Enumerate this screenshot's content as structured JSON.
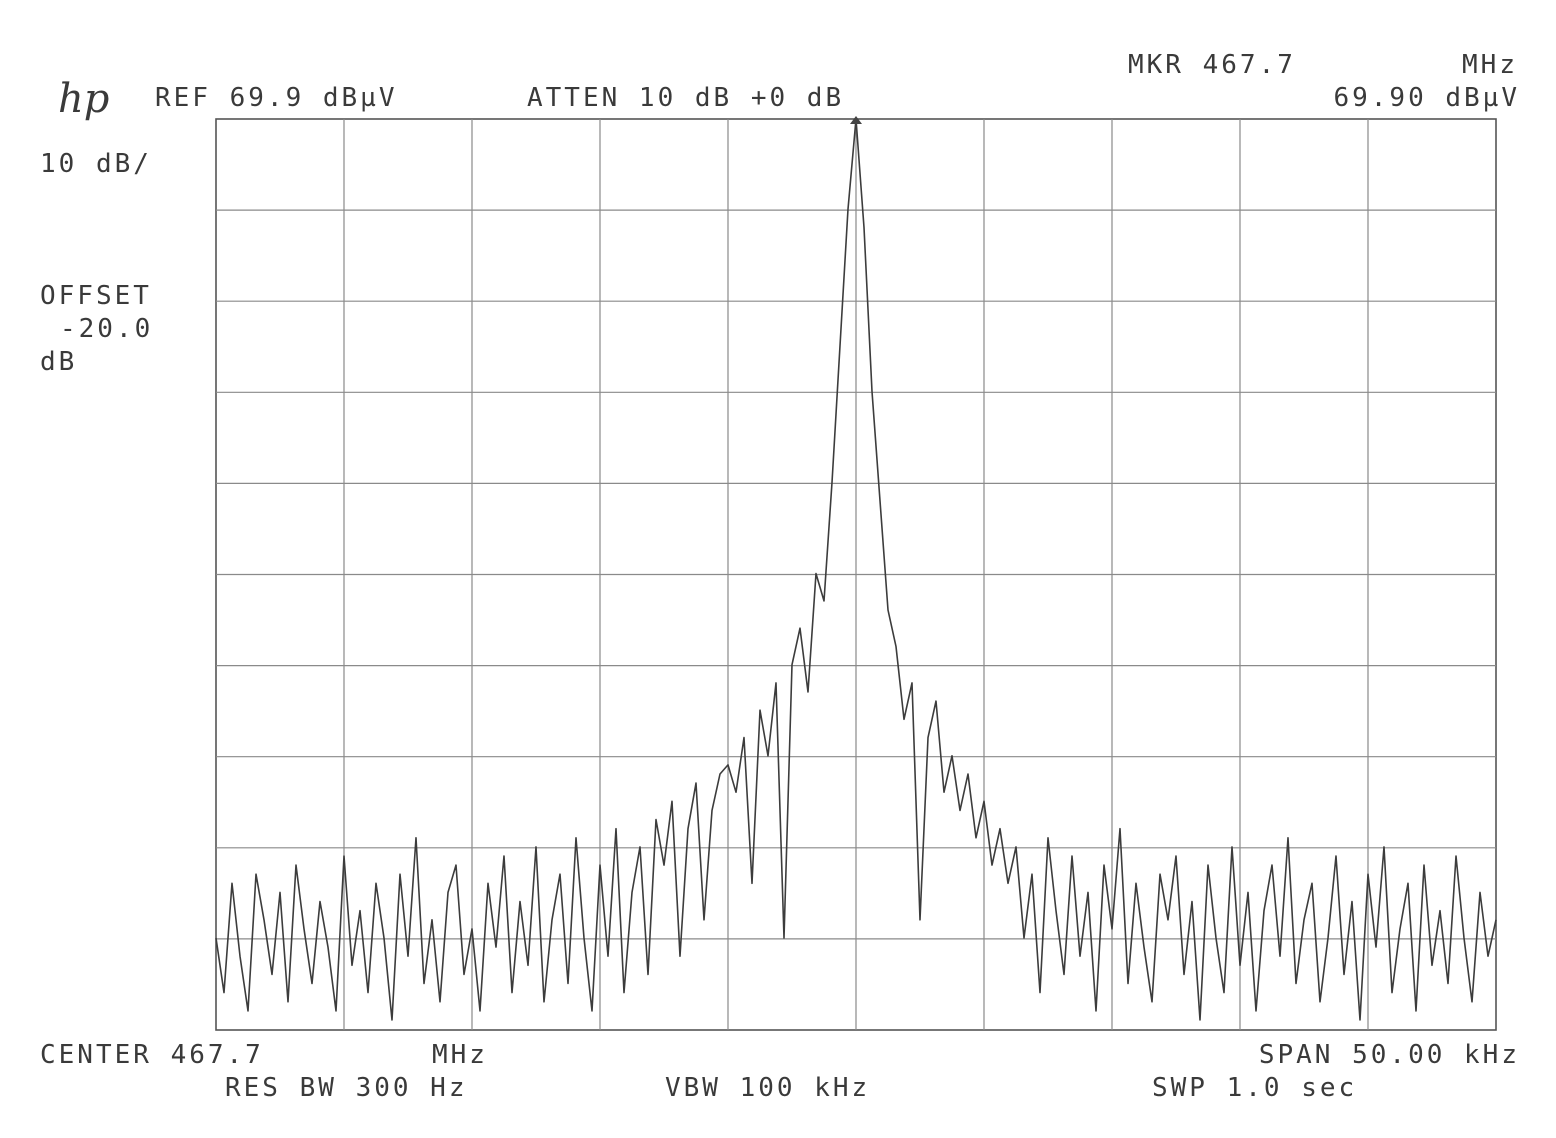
{
  "chart_data": {
    "type": "line",
    "logo": "hp",
    "reference": "REF 69.9 dBµV",
    "attenuation": "ATTEN 10 dB +0 dB",
    "marker_frequency": "MKR 467.7",
    "marker_unit": "MHz",
    "marker_level": "69.90 dBµV",
    "scale": "10 dB/",
    "offset_title": "OFFSET",
    "offset_value": "-20.0",
    "offset_unit": "dB",
    "center": "CENTER 467.7",
    "center_unit": "MHz",
    "span": "SPAN 50.00 kHz",
    "res_bw": "RES BW 300 Hz",
    "vbw": "VBW 100 kHz",
    "sweep": "SWP 1.0 sec",
    "color": "#3c3c3c",
    "ylim": [
      -30.1,
      69.9
    ],
    "grid": true,
    "values": [
      -20,
      -26,
      -14,
      -22,
      -28,
      -13,
      -18,
      -24,
      -15,
      -27,
      -12,
      -19,
      -25,
      -16,
      -21,
      -28,
      -11,
      -23,
      -17,
      -26,
      -14,
      -20,
      -29,
      -13,
      -22,
      -9,
      -25,
      -18,
      -27,
      -15,
      -12,
      -24,
      -19,
      -28,
      -14,
      -21,
      -11,
      -26,
      -16,
      -23,
      -10,
      -27,
      -18,
      -13,
      -25,
      -9,
      -20,
      -28,
      -12,
      -22,
      -8,
      -26,
      -15,
      -10,
      -24,
      -7,
      -12,
      -5,
      -22,
      -8,
      -3,
      -18,
      -6,
      -2,
      -1,
      -4,
      2,
      -14,
      5,
      0,
      8,
      -20,
      10,
      14,
      7,
      20,
      17,
      30,
      45,
      60,
      69.9,
      58,
      40,
      28,
      16,
      12,
      4,
      8,
      -18,
      2,
      6,
      -4,
      0,
      -6,
      -2,
      -9,
      -5,
      -12,
      -8,
      -14,
      -10,
      -20,
      -13,
      -26,
      -9,
      -17,
      -24,
      -11,
      -22,
      -15,
      -28,
      -12,
      -19,
      -8,
      -25,
      -14,
      -21,
      -27,
      -13,
      -18,
      -11,
      -24,
      -16,
      -29,
      -12,
      -20,
      -26,
      -10,
      -23,
      -15,
      -28,
      -17,
      -12,
      -22,
      -9,
      -25,
      -18,
      -14,
      -27,
      -20,
      -11,
      -24,
      -16,
      -29,
      -13,
      -21,
      -10,
      -26,
      -19,
      -14,
      -28,
      -12,
      -23,
      -17,
      -25,
      -11,
      -20,
      -27,
      -15,
      -22,
      -18
    ]
  }
}
